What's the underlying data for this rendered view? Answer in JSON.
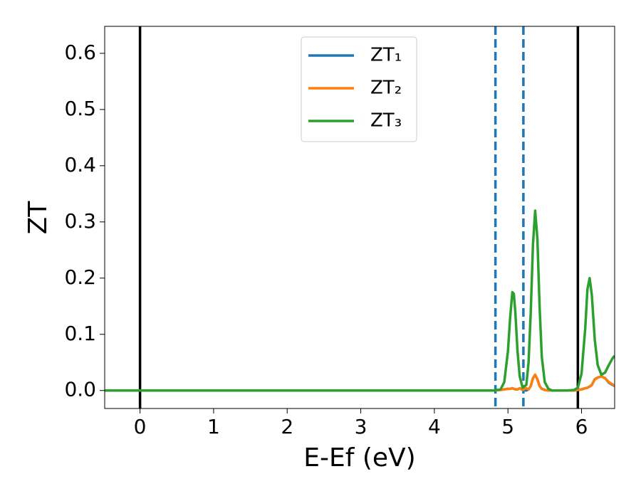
{
  "chart_data": {
    "type": "line",
    "xlabel": "E-Ef (eV)",
    "ylabel": "ZT",
    "x": [
      -0.48,
      0,
      1,
      2,
      3,
      4,
      4.5,
      4.8,
      4.9,
      4.95,
      5.0,
      5.03,
      5.06,
      5.08,
      5.1,
      5.13,
      5.16,
      5.2,
      5.25,
      5.28,
      5.31,
      5.34,
      5.37,
      5.4,
      5.43,
      5.46,
      5.5,
      5.55,
      5.6,
      5.7,
      5.8,
      5.9,
      5.95,
      6.0,
      6.05,
      6.08,
      6.11,
      6.14,
      6.18,
      6.22,
      6.27,
      6.32,
      6.37,
      6.42,
      6.45
    ],
    "series": [
      {
        "name": "ZT₁",
        "color": "#1f77b4",
        "values": [
          0,
          0,
          0,
          0,
          0,
          0,
          0,
          0,
          0.001,
          0.002,
          0.003,
          0.003,
          0.004,
          0.003,
          0.002,
          0.002,
          0.004,
          0.001,
          0,
          0.002,
          0.008,
          0.022,
          0.028,
          0.02,
          0.008,
          0.003,
          0.001,
          0,
          0,
          0,
          0,
          0,
          0.001,
          0.002,
          0.004,
          0.005,
          0.007,
          0.01,
          0.02,
          0.023,
          0.025,
          0.022,
          0.014,
          0.01,
          0.008
        ]
      },
      {
        "name": "ZT₂",
        "color": "#ff7f0e",
        "values": [
          0,
          0,
          0,
          0,
          0,
          0,
          0,
          0,
          0.001,
          0.002,
          0.003,
          0.003,
          0.004,
          0.003,
          0.002,
          0.002,
          0.004,
          0.001,
          0.004,
          0.002,
          0.008,
          0.022,
          0.028,
          0.02,
          0.008,
          0.003,
          0.001,
          0,
          0,
          0,
          0,
          0,
          0.001,
          0.002,
          0.004,
          0.005,
          0.007,
          0.01,
          0.02,
          0.023,
          0.025,
          0.022,
          0.015,
          0.011,
          0.008
        ]
      },
      {
        "name": "ZT₃",
        "color": "#2ca02c",
        "values": [
          0,
          0,
          0,
          0,
          0,
          0,
          0,
          0,
          0.002,
          0.015,
          0.07,
          0.13,
          0.175,
          0.172,
          0.14,
          0.07,
          0.025,
          0.005,
          0.01,
          0.05,
          0.14,
          0.26,
          0.32,
          0.27,
          0.15,
          0.06,
          0.015,
          0.003,
          0,
          0,
          0,
          0.001,
          0.005,
          0.03,
          0.11,
          0.18,
          0.2,
          0.17,
          0.09,
          0.045,
          0.028,
          0.032,
          0.045,
          0.057,
          0.062
        ]
      }
    ],
    "vlines": [
      {
        "x": 0,
        "color": "#000000",
        "style": "solid"
      },
      {
        "x": 5.95,
        "color": "#000000",
        "style": "solid"
      },
      {
        "x": 4.83,
        "color": "#1f77b4",
        "style": "dashed"
      },
      {
        "x": 5.21,
        "color": "#1f77b4",
        "style": "dashed"
      }
    ],
    "xlim": [
      -0.48,
      6.45
    ],
    "xticks": [
      0,
      1,
      2,
      3,
      4,
      5,
      6
    ],
    "ylim": [
      -0.032,
      0.648
    ],
    "yticks": [
      {
        "value": 0,
        "label": "0.0"
      },
      0.1,
      0.2,
      0.3,
      0.4,
      0.5,
      0.6
    ],
    "grid": false,
    "legend": "upper center"
  }
}
